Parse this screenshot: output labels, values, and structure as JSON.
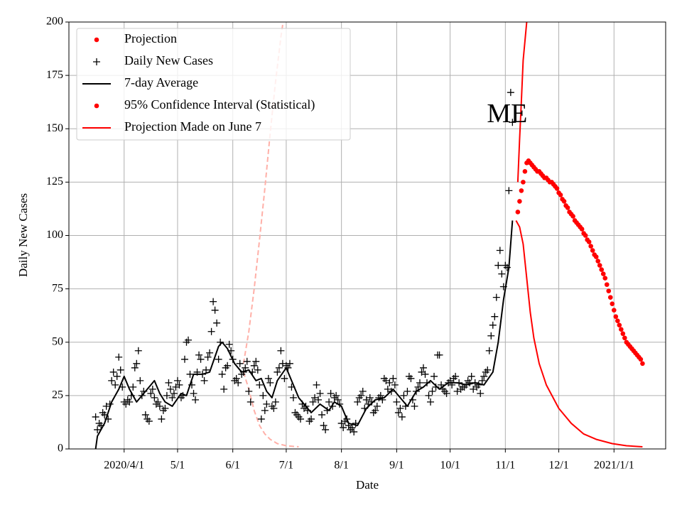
{
  "chart_data": {
    "type": "scatter",
    "xlabel": "Date",
    "ylabel": "Daily New Cases",
    "xlim": [
      "2020-03-01",
      "2021-01-30"
    ],
    "ylim": [
      0,
      200
    ],
    "yticks": [
      0,
      25,
      50,
      75,
      100,
      125,
      150,
      175,
      200
    ],
    "xticks": [
      {
        "value": "2020-04-01",
        "label": "2020/4/1"
      },
      {
        "value": "2020-05-01",
        "label": "5/1"
      },
      {
        "value": "2020-06-01",
        "label": "6/1"
      },
      {
        "value": "2020-07-01",
        "label": "7/1"
      },
      {
        "value": "2020-08-01",
        "label": "8/1"
      },
      {
        "value": "2020-09-01",
        "label": "9/1"
      },
      {
        "value": "2020-10-01",
        "label": "10/1"
      },
      {
        "value": "2020-11-01",
        "label": "11/1"
      },
      {
        "value": "2020-12-01",
        "label": "12/1"
      },
      {
        "value": "2021-01-01",
        "label": "2021/1/1"
      }
    ],
    "grid": true,
    "legend": "upper left",
    "annotations": [
      {
        "text": "ME",
        "x": "2020-11-02",
        "y": 156
      }
    ],
    "series": [
      {
        "name": "Projection",
        "style": "dots",
        "color": "#ff0000",
        "x": [
          "2020-11-08",
          "2020-11-09",
          "2020-11-10",
          "2020-11-11",
          "2020-11-12",
          "2020-11-13",
          "2020-11-14",
          "2020-11-15",
          "2020-11-16",
          "2020-11-17",
          "2020-11-18",
          "2020-11-19",
          "2020-11-20",
          "2020-11-21",
          "2020-11-22",
          "2020-11-23",
          "2020-11-24",
          "2020-11-25",
          "2020-11-26",
          "2020-11-27",
          "2020-11-28",
          "2020-11-29",
          "2020-11-30",
          "2020-12-01",
          "2020-12-02",
          "2020-12-03",
          "2020-12-04",
          "2020-12-05",
          "2020-12-06",
          "2020-12-07",
          "2020-12-08",
          "2020-12-09",
          "2020-12-10",
          "2020-12-11",
          "2020-12-12",
          "2020-12-13",
          "2020-12-14",
          "2020-12-15",
          "2020-12-16",
          "2020-12-17",
          "2020-12-18",
          "2020-12-19",
          "2020-12-20",
          "2020-12-21",
          "2020-12-22",
          "2020-12-23",
          "2020-12-24",
          "2020-12-25",
          "2020-12-26",
          "2020-12-27",
          "2020-12-28",
          "2020-12-29",
          "2020-12-30",
          "2020-12-31",
          "2021-01-01",
          "2021-01-02",
          "2021-01-03",
          "2021-01-04",
          "2021-01-05",
          "2021-01-06",
          "2021-01-07",
          "2021-01-08",
          "2021-01-09",
          "2021-01-10",
          "2021-01-11",
          "2021-01-12",
          "2021-01-13",
          "2021-01-14",
          "2021-01-15",
          "2021-01-16",
          "2021-01-17"
        ],
        "values": [
          111,
          116,
          121,
          125,
          130,
          134,
          135,
          134,
          133,
          132,
          131,
          130,
          130,
          129,
          128,
          127,
          127,
          126,
          125,
          125,
          124,
          123,
          122,
          120,
          119,
          117,
          116,
          114,
          113,
          111,
          110,
          109,
          107,
          106,
          105,
          104,
          103,
          101,
          100,
          98,
          97,
          95,
          93,
          91,
          90,
          88,
          86,
          84,
          82,
          80,
          77,
          74,
          71,
          68,
          65,
          62,
          60,
          58,
          56,
          54,
          52,
          50,
          49,
          48,
          47,
          46,
          45,
          44,
          43,
          42,
          40
        ]
      },
      {
        "name": "Daily New Cases",
        "style": "plus",
        "color": "#000000",
        "x": [
          "2020-03-16",
          "2020-03-17",
          "2020-03-18",
          "2020-03-19",
          "2020-03-20",
          "2020-03-21",
          "2020-03-22",
          "2020-03-23",
          "2020-03-24",
          "2020-03-25",
          "2020-03-26",
          "2020-03-27",
          "2020-03-28",
          "2020-03-29",
          "2020-03-30",
          "2020-03-31",
          "2020-04-01",
          "2020-04-02",
          "2020-04-03",
          "2020-04-04",
          "2020-04-05",
          "2020-04-06",
          "2020-04-07",
          "2020-04-08",
          "2020-04-09",
          "2020-04-10",
          "2020-04-11",
          "2020-04-12",
          "2020-04-13",
          "2020-04-14",
          "2020-04-15",
          "2020-04-16",
          "2020-04-17",
          "2020-04-18",
          "2020-04-19",
          "2020-04-20",
          "2020-04-21",
          "2020-04-22",
          "2020-04-23",
          "2020-04-24",
          "2020-04-25",
          "2020-04-26",
          "2020-04-27",
          "2020-04-28",
          "2020-04-29",
          "2020-04-30",
          "2020-05-01",
          "2020-05-02",
          "2020-05-03",
          "2020-05-04",
          "2020-05-05",
          "2020-05-06",
          "2020-05-07",
          "2020-05-08",
          "2020-05-09",
          "2020-05-10",
          "2020-05-11",
          "2020-05-12",
          "2020-05-13",
          "2020-05-14",
          "2020-05-15",
          "2020-05-16",
          "2020-05-17",
          "2020-05-18",
          "2020-05-19",
          "2020-05-20",
          "2020-05-21",
          "2020-05-22",
          "2020-05-23",
          "2020-05-24",
          "2020-05-25",
          "2020-05-26",
          "2020-05-27",
          "2020-05-28",
          "2020-05-29",
          "2020-05-30",
          "2020-05-31",
          "2020-06-01",
          "2020-06-02",
          "2020-06-03",
          "2020-06-04",
          "2020-06-05",
          "2020-06-06",
          "2020-06-07",
          "2020-06-08",
          "2020-06-09",
          "2020-06-10",
          "2020-06-11",
          "2020-06-12",
          "2020-06-13",
          "2020-06-14",
          "2020-06-15",
          "2020-06-16",
          "2020-06-17",
          "2020-06-18",
          "2020-06-19",
          "2020-06-20",
          "2020-06-21",
          "2020-06-22",
          "2020-06-23",
          "2020-06-24",
          "2020-06-25",
          "2020-06-26",
          "2020-06-27",
          "2020-06-28",
          "2020-06-29",
          "2020-06-30",
          "2020-07-01",
          "2020-07-02",
          "2020-07-03",
          "2020-07-04",
          "2020-07-05",
          "2020-07-06",
          "2020-07-07",
          "2020-07-08",
          "2020-07-09",
          "2020-07-10",
          "2020-07-11",
          "2020-07-12",
          "2020-07-13",
          "2020-07-14",
          "2020-07-15",
          "2020-07-16",
          "2020-07-17",
          "2020-07-18",
          "2020-07-19",
          "2020-07-20",
          "2020-07-21",
          "2020-07-22",
          "2020-07-23",
          "2020-07-24",
          "2020-07-25",
          "2020-07-26",
          "2020-07-27",
          "2020-07-28",
          "2020-07-29",
          "2020-07-30",
          "2020-07-31",
          "2020-08-01",
          "2020-08-02",
          "2020-08-03",
          "2020-08-04",
          "2020-08-05",
          "2020-08-06",
          "2020-08-07",
          "2020-08-08",
          "2020-08-09",
          "2020-08-10",
          "2020-08-11",
          "2020-08-12",
          "2020-08-13",
          "2020-08-14",
          "2020-08-15",
          "2020-08-16",
          "2020-08-17",
          "2020-08-18",
          "2020-08-19",
          "2020-08-20",
          "2020-08-21",
          "2020-08-22",
          "2020-08-23",
          "2020-08-24",
          "2020-08-25",
          "2020-08-26",
          "2020-08-27",
          "2020-08-28",
          "2020-08-29",
          "2020-08-30",
          "2020-08-31",
          "2020-09-01",
          "2020-09-02",
          "2020-09-03",
          "2020-09-04",
          "2020-09-05",
          "2020-09-06",
          "2020-09-07",
          "2020-09-08",
          "2020-09-09",
          "2020-09-10",
          "2020-09-11",
          "2020-09-12",
          "2020-09-13",
          "2020-09-14",
          "2020-09-15",
          "2020-09-16",
          "2020-09-17",
          "2020-09-18",
          "2020-09-19",
          "2020-09-20",
          "2020-09-21",
          "2020-09-22",
          "2020-09-23",
          "2020-09-24",
          "2020-09-25",
          "2020-09-26",
          "2020-09-27",
          "2020-09-28",
          "2020-09-29",
          "2020-09-30",
          "2020-10-01",
          "2020-10-02",
          "2020-10-03",
          "2020-10-04",
          "2020-10-05",
          "2020-10-06",
          "2020-10-07",
          "2020-10-08",
          "2020-10-09",
          "2020-10-10",
          "2020-10-11",
          "2020-10-12",
          "2020-10-13",
          "2020-10-14",
          "2020-10-15",
          "2020-10-16",
          "2020-10-17",
          "2020-10-18",
          "2020-10-19",
          "2020-10-20",
          "2020-10-21",
          "2020-10-22",
          "2020-10-23",
          "2020-10-24",
          "2020-10-25",
          "2020-10-26",
          "2020-10-27",
          "2020-10-28",
          "2020-10-29",
          "2020-10-30",
          "2020-10-31",
          "2020-11-01",
          "2020-11-02",
          "2020-11-03",
          "2020-11-04",
          "2020-11-05"
        ],
        "values": [
          15,
          9,
          12,
          11,
          17,
          16,
          20,
          14,
          21,
          32,
          36,
          30,
          34,
          43,
          37,
          29,
          22,
          21,
          23,
          22,
          25,
          29,
          38,
          40,
          46,
          32,
          25,
          27,
          16,
          14,
          13,
          26,
          28,
          24,
          21,
          22,
          20,
          14,
          18,
          19,
          25,
          31,
          28,
          24,
          26,
          29,
          32,
          30,
          24,
          25,
          42,
          50,
          51,
          35,
          30,
          26,
          23,
          36,
          44,
          42,
          35,
          32,
          37,
          43,
          45,
          55,
          69,
          65,
          59,
          42,
          50,
          35,
          28,
          38,
          39,
          49,
          46,
          42,
          32,
          33,
          31,
          40,
          35,
          36,
          38,
          41,
          27,
          22,
          36,
          39,
          41,
          37,
          30,
          14,
          25,
          18,
          21,
          33,
          31,
          20,
          19,
          22,
          36,
          38,
          46,
          40,
          33,
          39,
          38,
          40,
          29,
          24,
          17,
          16,
          15,
          14,
          21,
          19,
          20,
          18,
          13,
          14,
          22,
          24,
          30,
          23,
          26,
          16,
          11,
          9,
          18,
          22,
          26,
          20,
          24,
          25,
          23,
          21,
          12,
          10,
          13,
          14,
          11,
          9,
          10,
          8,
          12,
          22,
          24,
          25,
          27,
          19,
          23,
          21,
          24,
          22,
          17,
          18,
          20,
          24,
          25,
          23,
          33,
          32,
          28,
          31,
          27,
          33,
          30,
          22,
          17,
          19,
          15,
          25,
          20,
          27,
          34,
          33,
          23,
          20,
          27,
          29,
          31,
          36,
          38,
          35,
          31,
          25,
          22,
          27,
          34,
          29,
          44,
          44,
          30,
          28,
          27,
          26,
          31,
          32,
          30,
          33,
          34,
          27,
          31,
          28,
          29,
          29,
          30,
          32,
          31,
          34,
          28,
          31,
          29,
          30,
          26,
          32,
          34,
          36,
          37,
          46,
          53,
          58,
          62,
          71,
          86,
          93,
          82,
          76,
          86,
          85,
          121,
          167,
          153
        ]
      },
      {
        "name": "7-day Average",
        "style": "line",
        "color": "#000000",
        "x": [
          "2020-03-16",
          "2020-03-17",
          "2020-03-21",
          "2020-03-25",
          "2020-03-29",
          "2020-04-01",
          "2020-04-04",
          "2020-04-08",
          "2020-04-13",
          "2020-04-18",
          "2020-04-21",
          "2020-04-24",
          "2020-04-28",
          "2020-05-03",
          "2020-05-06",
          "2020-05-10",
          "2020-05-15",
          "2020-05-19",
          "2020-05-24",
          "2020-05-26",
          "2020-05-29",
          "2020-06-02",
          "2020-06-06",
          "2020-06-10",
          "2020-06-14",
          "2020-06-17",
          "2020-06-20",
          "2020-06-23",
          "2020-06-26",
          "2020-07-01",
          "2020-07-04",
          "2020-07-08",
          "2020-07-12",
          "2020-07-15",
          "2020-07-20",
          "2020-07-25",
          "2020-07-28",
          "2020-08-01",
          "2020-08-05",
          "2020-08-10",
          "2020-08-15",
          "2020-08-20",
          "2020-08-25",
          "2020-08-30",
          "2020-09-03",
          "2020-09-07",
          "2020-09-12",
          "2020-09-16",
          "2020-09-20",
          "2020-09-25",
          "2020-09-30",
          "2020-10-05",
          "2020-10-10",
          "2020-10-15",
          "2020-10-20",
          "2020-10-25",
          "2020-10-28",
          "2020-10-31",
          "2020-11-03",
          "2020-11-05"
        ],
        "values": [
          0,
          6,
          12,
          22,
          28,
          34,
          28,
          22,
          27,
          32,
          26,
          22,
          20,
          26,
          25,
          35,
          35,
          36,
          48,
          50,
          47,
          40,
          36,
          37,
          32,
          33,
          27,
          24,
          32,
          38,
          32,
          24,
          20,
          17,
          21,
          18,
          22,
          20,
          12,
          11,
          19,
          23,
          24,
          28,
          24,
          20,
          27,
          29,
          32,
          28,
          31,
          31,
          30,
          31,
          30,
          36,
          50,
          70,
          85,
          107
        ]
      },
      {
        "name": "95% Confidence Interval (Statistical)",
        "style": "dashed",
        "legend_marker": "dot",
        "color": "#ffb0a8",
        "x": [
          "2020-06-07",
          "2020-06-10",
          "2020-06-13",
          "2020-06-16",
          "2020-06-19",
          "2020-06-22",
          "2020-06-25",
          "2020-06-28",
          "2020-07-01"
        ],
        "values": [
          40,
          55,
          75,
          98,
          122,
          148,
          172,
          193,
          210
        ]
      },
      {
        "style": "dashed",
        "color": "#ffb0a8",
        "x": [
          "2020-06-07",
          "2020-06-10",
          "2020-06-13",
          "2020-06-16",
          "2020-06-19",
          "2020-06-22",
          "2020-06-26",
          "2020-07-01",
          "2020-07-08"
        ],
        "values": [
          36,
          28,
          18,
          11,
          7,
          4.5,
          2.5,
          1.5,
          1
        ]
      },
      {
        "name": "Projection Made on June 7",
        "style": "line",
        "color": "#ff0000",
        "x": [
          "2020-11-07",
          "2020-11-09",
          "2020-11-11",
          "2020-11-13",
          "2020-11-15",
          "2020-11-17",
          "2020-11-20",
          "2020-11-24",
          "2020-12-01",
          "2020-12-08",
          "2020-12-15",
          "2020-12-22",
          "2020-12-31",
          "2021-01-08",
          "2021-01-17"
        ],
        "values": [
          107,
          104,
          96,
          80,
          64,
          52,
          40,
          30,
          19,
          12,
          7,
          4.5,
          2.5,
          1.5,
          1
        ]
      },
      {
        "style": "line",
        "color": "#ff0000",
        "x": [
          "2020-11-08",
          "2020-11-09",
          "2020-11-10",
          "2020-11-11",
          "2020-11-13",
          "2020-11-14"
        ],
        "values": [
          125,
          145,
          163,
          182,
          200,
          210
        ]
      }
    ]
  }
}
